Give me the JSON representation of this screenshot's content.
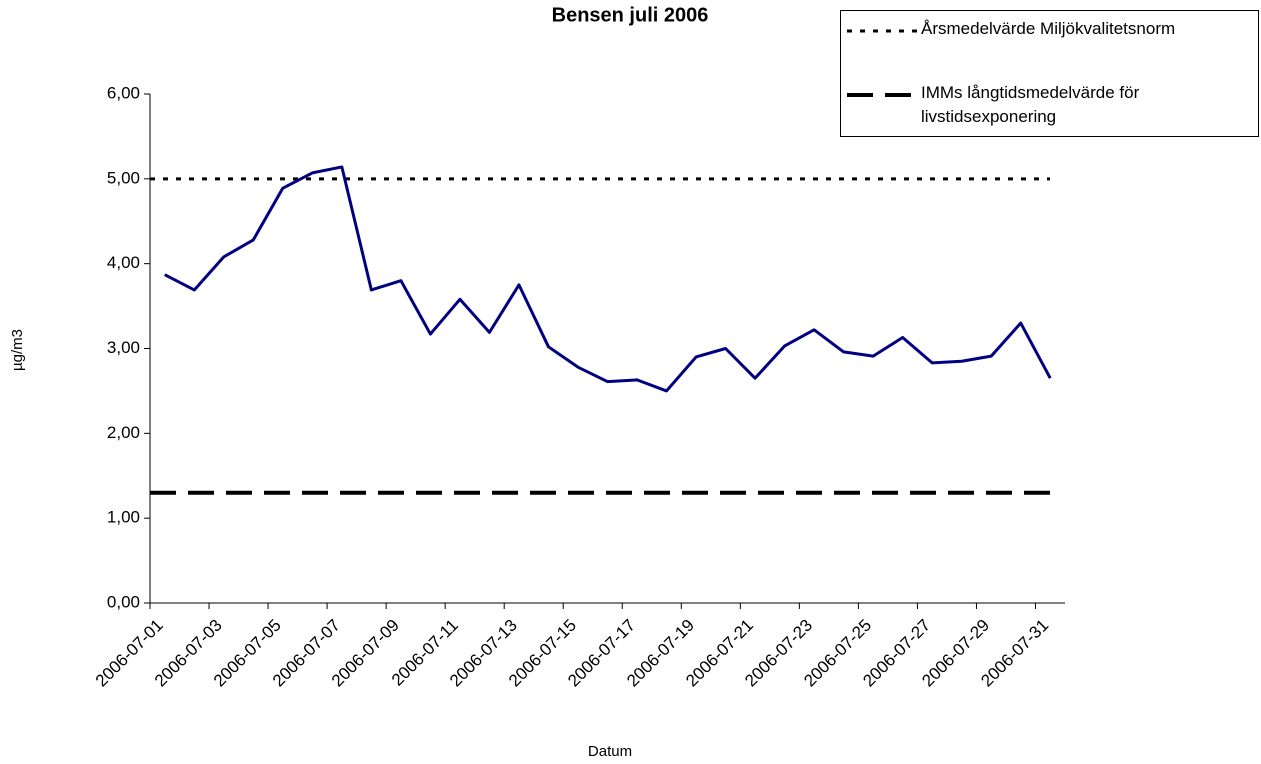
{
  "chart_data": {
    "type": "line",
    "title": "Bensen juli 2006",
    "x_label": "Datum",
    "y_label": "µg/m3",
    "categories": [
      "2006-07-01",
      null,
      "2006-07-03",
      null,
      "2006-07-05",
      null,
      "2006-07-07",
      null,
      "2006-07-09",
      null,
      "2006-07-11",
      null,
      "2006-07-13",
      null,
      "2006-07-15",
      null,
      "2006-07-17",
      null,
      "2006-07-19",
      null,
      "2006-07-21",
      null,
      "2006-07-23",
      null,
      "2006-07-25",
      null,
      "2006-07-27",
      null,
      "2006-07-29",
      null,
      "2006-07-31"
    ],
    "series": [
      {
        "color": "#000080",
        "values": [
          3.87,
          3.69,
          4.08,
          4.28,
          4.89,
          5.07,
          5.14,
          3.69,
          3.8,
          3.17,
          3.58,
          3.19,
          3.75,
          3.02,
          2.78,
          2.61,
          2.63,
          2.5,
          2.9,
          3.0,
          2.65,
          3.03,
          3.22,
          2.96,
          2.91,
          3.13,
          2.83,
          2.85,
          2.91,
          3.3,
          2.65
        ]
      }
    ],
    "reference_lines": [
      {
        "name": "Årsmedelvärde Miljökvalitetsnorm",
        "value": 5.0,
        "style": "dotted",
        "color": "#000000"
      },
      {
        "name": "IMMs långtidsmedelvärde för livstidsexponering",
        "value": 1.3,
        "style": "dashed",
        "color": "#000000"
      }
    ],
    "ylim": [
      0,
      6
    ],
    "yticks": [
      {
        "value": 0,
        "label": "0,00"
      },
      {
        "value": 1,
        "label": "1,00"
      },
      {
        "value": 2,
        "label": "2,00"
      },
      {
        "value": 3,
        "label": "3,00"
      },
      {
        "value": 4,
        "label": "4,00"
      },
      {
        "value": 5,
        "label": "5,00"
      },
      {
        "value": 6,
        "label": "6,00"
      }
    ],
    "grid": false,
    "legend": "top-right"
  }
}
